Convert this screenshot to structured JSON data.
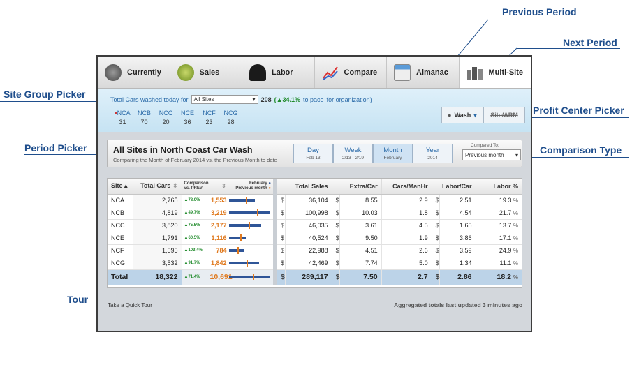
{
  "callouts": {
    "previous_period": "Previous Period",
    "next_period": "Next Period",
    "site_group_picker": "Site Group Picker",
    "profit_center_picker": "Profit Center Picker",
    "period_picker": "Period Picker",
    "comparison_type": "Comparison Type",
    "tour": "Tour"
  },
  "nav": {
    "tabs": [
      {
        "label": "Currently",
        "icon": "speedometer-icon"
      },
      {
        "label": "Sales",
        "icon": "money-bag-icon"
      },
      {
        "label": "Labor",
        "icon": "person-icon"
      },
      {
        "label": "Compare",
        "icon": "line-chart-icon"
      },
      {
        "label": "Almanac",
        "icon": "calendar-icon"
      },
      {
        "label": "Multi-Site",
        "icon": "buildings-icon"
      }
    ]
  },
  "summary": {
    "prefix": "Total Cars washed today for",
    "site_group": "All Sites",
    "total": "208",
    "change": "(▲34.1%",
    "link": "to pace",
    "suffix": "for organization)",
    "sites": [
      {
        "code": "NCA",
        "value": "31"
      },
      {
        "code": "NCB",
        "value": "70"
      },
      {
        "code": "NCC",
        "value": "20"
      },
      {
        "code": "NCE",
        "value": "36"
      },
      {
        "code": "NCF",
        "value": "23"
      },
      {
        "code": "NCG",
        "value": "28"
      }
    ],
    "profit_center": {
      "wash": "Wash",
      "site_arm": "Site/ARM"
    }
  },
  "period_bar": {
    "title": "All Sites in North Coast Car Wash",
    "subtitle": "Comparing the Month of February 2014 vs. the Previous Month to date",
    "periods": [
      {
        "label": "Day",
        "sub": "Feb 13"
      },
      {
        "label": "Week",
        "sub": "2/13 - 2/19"
      },
      {
        "label": "Month",
        "sub": "February"
      },
      {
        "label": "Year",
        "sub": "2014"
      }
    ],
    "compared_to_label": "Compared To:",
    "compared_to_value": "Previous month"
  },
  "table": {
    "headers": {
      "site": "Site",
      "total_cars": "Total Cars",
      "comparison": "Comparison vs. PREV",
      "legend_feb": "February",
      "legend_prev": "Previous month",
      "total_sales": "Total Sales",
      "extra_car": "Extra/Car",
      "cars_manhr": "Cars/ManHr",
      "labor_car": "Labor/Car",
      "labor_pct": "Labor %"
    },
    "rows": [
      {
        "site": "NCA",
        "cars": "2,765",
        "pct": "▲78.0%",
        "prev": "1,553",
        "bar": 0.62,
        "mark": 0.4,
        "sales": "36,104",
        "extra": "8.55",
        "cmh": "2.9",
        "labor": "2.51",
        "lpct": "19.3"
      },
      {
        "site": "NCB",
        "cars": "4,819",
        "pct": "▲49.7%",
        "prev": "3,219",
        "bar": 0.97,
        "mark": 0.68,
        "sales": "100,998",
        "extra": "10.03",
        "cmh": "1.8",
        "labor": "4.54",
        "lpct": "21.7"
      },
      {
        "site": "NCC",
        "cars": "3,820",
        "pct": "▲75.5%",
        "prev": "2,177",
        "bar": 0.78,
        "mark": 0.48,
        "sales": "46,035",
        "extra": "3.61",
        "cmh": "4.5",
        "labor": "1.65",
        "lpct": "13.7"
      },
      {
        "site": "NCE",
        "cars": "1,791",
        "pct": "▲60.5%",
        "prev": "1,116",
        "bar": 0.4,
        "mark": 0.27,
        "sales": "40,524",
        "extra": "9.50",
        "cmh": "1.9",
        "labor": "3.86",
        "lpct": "17.1"
      },
      {
        "site": "NCF",
        "cars": "1,595",
        "pct": "▲103.4%",
        "prev": "784",
        "bar": 0.36,
        "mark": 0.2,
        "sales": "22,988",
        "extra": "4.51",
        "cmh": "2.6",
        "labor": "3.59",
        "lpct": "24.9"
      },
      {
        "site": "NCG",
        "cars": "3,532",
        "pct": "▲91.7%",
        "prev": "1,842",
        "bar": 0.72,
        "mark": 0.42,
        "sales": "42,469",
        "extra": "7.74",
        "cmh": "5.0",
        "labor": "1.34",
        "lpct": "11.1"
      }
    ],
    "total": {
      "site": "Total",
      "cars": "18,322",
      "pct": "▲71.4%",
      "prev": "10,691",
      "bar": 0.97,
      "mark": 0.57,
      "sales": "289,117",
      "extra": "7.50",
      "cmh": "2.7",
      "labor": "2.86",
      "lpct": "18.2"
    },
    "currency": "$",
    "percent": "%"
  },
  "footer": {
    "tour_link": "Take a Quick Tour",
    "updated": "Aggregated totals last updated 3 minutes ago"
  }
}
